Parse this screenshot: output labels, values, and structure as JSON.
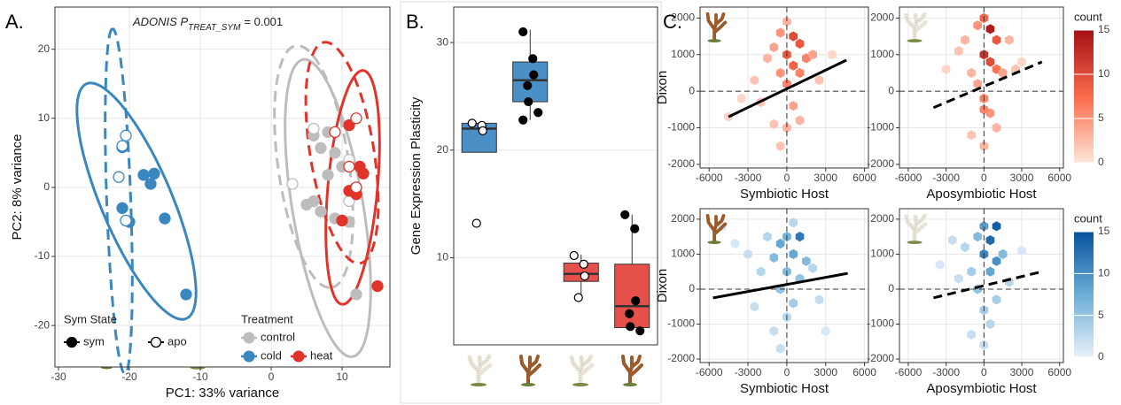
{
  "chart_data": [
    {
      "type": "scatter",
      "label": "A.",
      "annotation": {
        "text": "ADONIS P",
        "subscript": "TREAT_SYM",
        "value": "= 0.001"
      },
      "xlabel": "PC1: 33% variance",
      "ylabel": "PC2: 8% variance",
      "xlim": [
        -30.5,
        16.75
      ],
      "ylim": [
        -26,
        26.1
      ],
      "xticks": [
        -30,
        -20,
        -10,
        0,
        10
      ],
      "yticks": [
        -20,
        -10,
        0,
        10,
        20
      ],
      "grid": true,
      "series": [
        {
          "color": "#bdbdbd",
          "filled": true,
          "x": [
            6,
            8,
            7,
            9,
            10,
            6,
            7,
            9,
            11,
            5,
            8,
            12
          ],
          "values": [
            7.5,
            8,
            5.7,
            5,
            3,
            -2,
            -3.5,
            -4.5,
            -5,
            -2.5,
            1.8,
            -15.5
          ]
        },
        {
          "color": "#bdbdbd",
          "filled": false,
          "x": [
            3,
            6,
            11,
            11
          ],
          "values": [
            0.5,
            8.5,
            4,
            -2
          ]
        },
        {
          "color": "#3a87c0",
          "filled": true,
          "x": [
            -21,
            -18,
            -16.5,
            -21,
            -20,
            -17,
            -15,
            -12
          ],
          "values": [
            5.8,
            1.8,
            2,
            -3,
            -5,
            0.5,
            -4.5,
            -15.5
          ]
        },
        {
          "color": "#3a87c0",
          "filled": false,
          "x": [
            -20.5,
            -21,
            -21.5,
            -20.5
          ],
          "values": [
            7.5,
            6,
            1.5,
            -4.8
          ]
        },
        {
          "color": "#e0342b",
          "filled": true,
          "x": [
            11,
            13,
            12.5,
            11,
            12,
            10,
            15
          ],
          "values": [
            9,
            2,
            3,
            -0.5,
            -1,
            -4.8,
            -14.3
          ]
        },
        {
          "color": "#e0342b",
          "filled": false,
          "x": [
            9,
            12,
            11,
            12
          ],
          "values": [
            8,
            10,
            3,
            0
          ]
        }
      ],
      "ellipses": [
        {
          "color": "#3a87c0",
          "dashed": false,
          "center": [
            -19,
            -2
          ],
          "radii": [
            18.4,
            5
          ],
          "angle": -67.6
        },
        {
          "color": "#3a87c0",
          "dashed": true,
          "center": [
            -21.5,
            -2
          ],
          "radii": [
            25,
            1.7
          ],
          "angle": 92
        },
        {
          "color": "#bdbdbd",
          "dashed": false,
          "center": [
            8,
            -3
          ],
          "radii": [
            21.8,
            5
          ],
          "angle": -80.8
        },
        {
          "color": "#bdbdbd",
          "dashed": true,
          "center": [
            6,
            3
          ],
          "radii": [
            17.7,
            5
          ],
          "angle": -81.9
        },
        {
          "color": "#e0342b",
          "dashed": false,
          "center": [
            11.5,
            0
          ],
          "radii": [
            17,
            3.5
          ],
          "angle": -95
        },
        {
          "color": "#e0342b",
          "dashed": true,
          "center": [
            10,
            5
          ],
          "radii": [
            16.2,
            4.5
          ],
          "angle": -81
        }
      ],
      "legend": {
        "sym_title": "Sym State",
        "sym_states": [
          "sym",
          "apo"
        ],
        "treatment_title": "Treatment",
        "treatments": [
          "control",
          "cold",
          "heat"
        ],
        "treatment_colors": [
          "#bdbdbd",
          "#3a87c0",
          "#e0342b"
        ]
      }
    },
    {
      "type": "box",
      "label": "B.",
      "ylabel": "Gene Expression Plasticity",
      "categories": [
        null,
        null,
        null,
        null
      ],
      "ylim": [
        1.9,
        33.3
      ],
      "yticks": [
        10,
        20,
        30
      ],
      "grid": true,
      "boxes": [
        {
          "color": "#4a8fc6",
          "q1": 19.8,
          "median": 22,
          "q3": 22.5,
          "whisker_low": 19.8,
          "whisker_high": 22.5,
          "points_filled": false,
          "points": [
            22.5,
            22.3,
            21.8,
            13.2
          ]
        },
        {
          "color": "#4a8fc6",
          "q1": 24.5,
          "median": 26.5,
          "q3": 28.2,
          "whisker_low": 22.8,
          "whisker_high": 31.2,
          "points_filled": true,
          "points": [
            31,
            28.5,
            27,
            26,
            24.5,
            23.5,
            22.8
          ]
        },
        {
          "color": "#e5504a",
          "q1": 7.8,
          "median": 8.5,
          "q3": 9.5,
          "whisker_low": 6.2,
          "whisker_high": 10.3,
          "points_filled": false,
          "points": [
            10.2,
            9.4,
            8.3,
            6.3
          ]
        },
        {
          "color": "#e5504a",
          "q1": 3.5,
          "median": 5.5,
          "q3": 9.4,
          "whisker_low": 3.2,
          "whisker_high": 14,
          "points_filled": true,
          "points": [
            14,
            12.7,
            6,
            4.8,
            3.6,
            3.2
          ]
        }
      ]
    },
    {
      "type": "hexbin",
      "label": "C.",
      "xlabel": "Symbiotic Host",
      "ylabel": "Dixon",
      "xlim": [
        -6700,
        6300
      ],
      "ylim": [
        -2100,
        2300
      ],
      "xticks": [
        -6000,
        -3000,
        0,
        3000,
        6000
      ],
      "yticks": [
        -2000,
        -1000,
        0,
        1000,
        2000
      ],
      "grid": true,
      "hline": 0,
      "vline": 0,
      "scale": "red",
      "bins": {
        "x": [
          -4500,
          -3500,
          -2500,
          -2000,
          -1500,
          -1000,
          -1000,
          -500,
          -500,
          -500,
          0,
          0,
          0,
          0,
          500,
          500,
          500,
          1000,
          1000,
          1000,
          1500,
          2000,
          2500,
          3500
        ],
        "y": [
          -700,
          -200,
          300,
          -300,
          900,
          1200,
          -900,
          1600,
          500,
          -1500,
          1900,
          1000,
          200,
          -1000,
          1500,
          700,
          -400,
          1300,
          500,
          -800,
          900,
          1000,
          300,
          1000
        ],
        "counts": [
          1,
          1,
          2,
          2,
          3,
          4,
          2,
          5,
          5,
          2,
          3,
          9,
          6,
          3,
          10,
          8,
          4,
          9,
          6,
          3,
          6,
          4,
          2,
          1
        ]
      },
      "trend": {
        "x": [
          -4500,
          4600
        ],
        "y": [
          -700,
          850
        ],
        "dashed": false
      }
    },
    {
      "type": "hexbin",
      "xlabel": "Aposymbiotic Host",
      "xlim": [
        -6700,
        6300
      ],
      "ylim": [
        -2100,
        2300
      ],
      "xticks": [
        -6000,
        -3000,
        0,
        3000,
        6000
      ],
      "yticks": [
        -2000,
        -1000,
        0,
        1000,
        2000
      ],
      "grid": true,
      "hline": 0,
      "vline": 0,
      "scale": "red",
      "bins": {
        "x": [
          -3000,
          -2000,
          -1500,
          -1000,
          -500,
          -500,
          0,
          0,
          0,
          0,
          500,
          500,
          500,
          1000,
          1000,
          1500,
          2000,
          2500,
          3000,
          1000,
          -1000,
          0
        ],
        "y": [
          600,
          1100,
          1400,
          500,
          1800,
          200,
          2000,
          1000,
          -200,
          -1500,
          1700,
          800,
          -600,
          1400,
          600,
          500,
          1400,
          600,
          800,
          -1000,
          -1200,
          -500
        ],
        "counts": [
          1,
          2,
          3,
          3,
          5,
          4,
          8,
          12,
          6,
          3,
          14,
          10,
          5,
          9,
          7,
          4,
          3,
          2,
          1,
          3,
          2,
          6
        ]
      },
      "trend": {
        "x": [
          -4000,
          4600
        ],
        "y": [
          -450,
          800
        ],
        "dashed": true
      },
      "colorbar": {
        "title": "count",
        "lim": [
          0,
          15
        ],
        "ticks": [
          0,
          5,
          10,
          15
        ],
        "colors": [
          "#fee5d9",
          "#fb6a4a",
          "#a50f15"
        ]
      }
    },
    {
      "type": "hexbin",
      "xlabel": "Symbiotic Host",
      "ylabel": "Dixon",
      "xlim": [
        -6700,
        6300
      ],
      "ylim": [
        -2100,
        2300
      ],
      "xticks": [
        -6000,
        -3000,
        0,
        3000,
        6000
      ],
      "yticks": [
        -2000,
        -1000,
        0,
        1000,
        2000
      ],
      "grid": true,
      "hline": 0,
      "vline": 0,
      "scale": "blue",
      "bins": {
        "x": [
          -5000,
          -4000,
          -3000,
          -2500,
          -2000,
          -1500,
          -1000,
          -1000,
          -500,
          -500,
          0,
          0,
          0,
          500,
          500,
          1000,
          1000,
          1500,
          2000,
          2500,
          3000,
          -500,
          500
        ],
        "y": [
          1800,
          1300,
          1000,
          -500,
          500,
          1500,
          900,
          -1200,
          1300,
          0,
          1500,
          500,
          -800,
          1000,
          -400,
          1500,
          300,
          800,
          600,
          -300,
          -1200,
          -1700,
          1900
        ],
        "counts": [
          1,
          1,
          2,
          2,
          3,
          3,
          6,
          2,
          8,
          5,
          7,
          6,
          3,
          8,
          4,
          12,
          5,
          6,
          3,
          2,
          1,
          2,
          3
        ]
      },
      "trend": {
        "x": [
          -5700,
          4700
        ],
        "y": [
          -250,
          450
        ],
        "dashed": false
      }
    },
    {
      "type": "hexbin",
      "xlabel": "Aposymbiotic Host",
      "xlim": [
        -6700,
        6300
      ],
      "ylim": [
        -2100,
        2300
      ],
      "xticks": [
        -6000,
        -3000,
        0,
        3000,
        6000
      ],
      "yticks": [
        -2000,
        -1000,
        0,
        1000,
        2000
      ],
      "grid": true,
      "hline": 0,
      "vline": 0,
      "scale": "blue",
      "bins": {
        "x": [
          -3500,
          -2500,
          -2000,
          -1500,
          -1000,
          -500,
          -500,
          0,
          0,
          0,
          500,
          500,
          500,
          1000,
          1000,
          1500,
          2000,
          3000,
          0,
          -1000,
          1000
        ],
        "y": [
          700,
          1400,
          300,
          1200,
          500,
          1500,
          0,
          1800,
          1000,
          -600,
          1400,
          500,
          -1000,
          1800,
          800,
          1000,
          200,
          1100,
          -1600,
          -1300,
          -300
        ],
        "counts": [
          1,
          2,
          2,
          3,
          4,
          6,
          5,
          9,
          11,
          4,
          13,
          8,
          3,
          14,
          10,
          6,
          3,
          1,
          2,
          2,
          4
        ]
      },
      "trend": {
        "x": [
          -4000,
          4600
        ],
        "y": [
          -250,
          500
        ],
        "dashed": true
      },
      "colorbar": {
        "title": "count",
        "lim": [
          0,
          15
        ],
        "ticks": [
          0,
          5,
          10,
          15
        ],
        "colors": [
          "#e8f0fa",
          "#6baed6",
          "#08519c"
        ]
      }
    }
  ]
}
